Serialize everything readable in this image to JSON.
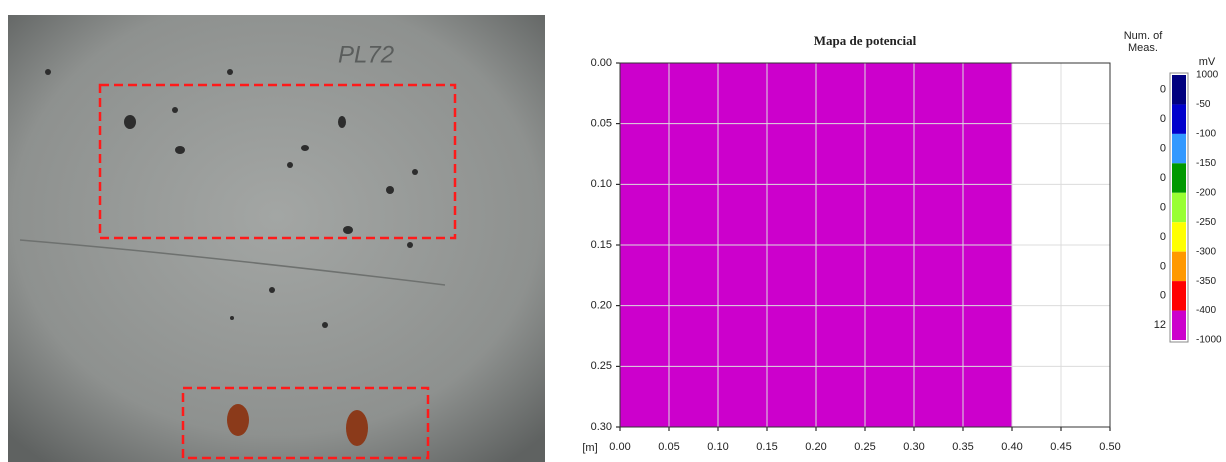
{
  "photo": {
    "handwriting": "PL72"
  },
  "chart_data": {
    "type": "heatmap",
    "title": "Mapa de potencial",
    "x_label": "[m]",
    "xlim": [
      0,
      0.5
    ],
    "ylim": [
      0,
      0.3
    ],
    "y_inverted": true,
    "grid": true,
    "xticks": [
      {
        "value": 0,
        "label": "0.00"
      },
      {
        "value": 0.05,
        "label": "0.05"
      },
      {
        "value": 0.1,
        "label": "0.10"
      },
      {
        "value": 0.15,
        "label": "0.15"
      },
      {
        "value": 0.2,
        "label": "0.20"
      },
      {
        "value": 0.25,
        "label": "0.25"
      },
      {
        "value": 0.3,
        "label": "0.30"
      },
      {
        "value": 0.35,
        "label": "0.35"
      },
      {
        "value": 0.4,
        "label": "0.40"
      },
      {
        "value": 0.45,
        "label": "0.45"
      },
      {
        "value": 0.5,
        "label": "0.50"
      }
    ],
    "yticks": [
      {
        "value": 0,
        "label": "0.00"
      },
      {
        "value": 0.05,
        "label": "0.05"
      },
      {
        "value": 0.1,
        "label": "0.10"
      },
      {
        "value": 0.15,
        "label": "0.15"
      },
      {
        "value": 0.2,
        "label": "0.20"
      },
      {
        "value": 0.25,
        "label": "0.25"
      },
      {
        "value": 0.3,
        "label": "0.30"
      }
    ],
    "filled_region": {
      "x": [
        0,
        0.4
      ],
      "y": [
        0,
        0.3
      ],
      "color": "#cc00cc"
    },
    "legend": {
      "title": "Num. of Meas.",
      "unit": "mV",
      "boundaries": [
        1000,
        -50,
        -100,
        -150,
        -200,
        -250,
        -300,
        -350,
        -400,
        -1000
      ],
      "colors": [
        "#00007f",
        "#0000cc",
        "#3399ff",
        "#009900",
        "#99ff33",
        "#ffff00",
        "#ff9900",
        "#ff0000",
        "#cc00cc"
      ],
      "counts": [
        0,
        0,
        0,
        0,
        0,
        0,
        0,
        0,
        12
      ]
    }
  }
}
